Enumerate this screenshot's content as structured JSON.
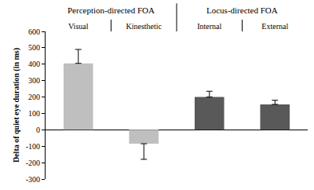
{
  "chart_data": {
    "type": "bar",
    "categories": [
      "Visual",
      "Kinesthetic",
      "Internal",
      "External"
    ],
    "values": [
      405,
      -85,
      200,
      155
    ],
    "errors": [
      85,
      95,
      35,
      25
    ],
    "colors": [
      "#bfbfbf",
      "#bfbfbf",
      "#595959",
      "#595959"
    ],
    "ylabel": "Delta of quiet eye duration (in ms)",
    "ylim": [
      -300,
      600
    ],
    "yticks": [
      -300,
      -200,
      -100,
      0,
      100,
      200,
      300,
      400,
      500,
      600
    ],
    "grid": false,
    "groups": [
      {
        "label": "Perception-directed FOA",
        "categories": [
          "Visual",
          "Kinesthetic"
        ]
      },
      {
        "label": "Locus-directed FOA",
        "categories": [
          "Internal",
          "External"
        ]
      }
    ]
  }
}
